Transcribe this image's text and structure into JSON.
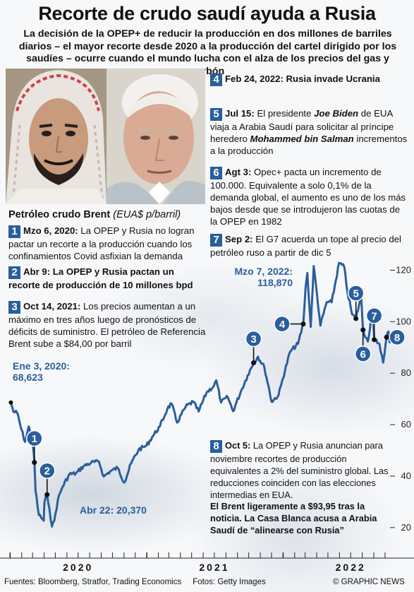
{
  "header": {
    "title": "Recorte de crudo saudí ayuda a Rusia",
    "subtitle": "La decisión de la OPEP+ de reducir la producción en dos millones de barriles diarios – el mayor recorte desde 2020 a la producción del cartel dirigido por los saudíes – ocurre cuando el mundo lucha con el alza de los precios del gas y carbón"
  },
  "photos": {
    "left": "Mohammed bin Salman",
    "right": "Joe Biden"
  },
  "events": [
    {
      "n": "1",
      "date": "Mzo 6, 2020:",
      "text": " La OPEP y Rusia no logran pactar un recorte a la producción cuando los confinamientos Covid asfixian la demanda"
    },
    {
      "n": "2",
      "date": "Abr 9:",
      "text": " La OPEP y Rusia pactan un recorte de producción de 10 millones bpd"
    },
    {
      "n": "3",
      "date": "Oct 14, 2021:",
      "text": " Los precios aumentan a un máximo en tres años luego de pronósticos de déficits de suministro. El petróleo de Referencia Brent sube a $84,00 por barril"
    },
    {
      "n": "4",
      "date": "Feb 24, 2022:",
      "text": " Rusia invade Ucrania"
    },
    {
      "n": "5",
      "date": "Jul 15:",
      "text_a": " El presidente ",
      "name_a": "Joe Biden",
      "text_b": " de EUA viaja a Arabia Saudí para solicitar al príncipe heredero ",
      "name_b": "Mohammed bin Salman",
      "text_c": " incrementos a la producción"
    },
    {
      "n": "6",
      "date": "Agt 3:",
      "text": " Opec+ pacta un incremento de 100.000. Equivalente a solo 0,1% de la demanda global, el aumento es uno de los más bajos desde que se introdujeron las cuotas de la OPEP en 1982"
    },
    {
      "n": "7",
      "date": "Sep 2:",
      "text": " El G7 acuerda un tope al precio del petróleo ruso a partir de dic 5"
    },
    {
      "n": "8",
      "date": "Oct 5:",
      "text": " La OPEP y Rusia anuncian para noviembre recortes de producción equivalentes a 2% del suministro global. Las reducciones coinciden con las elecciones intermedias en EUA."
    }
  ],
  "brent_note": "El Brent ligeramente a $93,95 tras la noticia. La Casa Blanca acusa a Arabia Saudí de “alinearse con Rusia”",
  "chart_data": {
    "type": "line",
    "title": "Petróleo crudo Brent",
    "unit": "(EUA$ p/barril)",
    "series_color": "#2a5e9c",
    "x_tick_labels": [
      "2020",
      "2021",
      "2022"
    ],
    "y_tick_labels": [
      "20",
      "40",
      "60",
      "80",
      "100",
      "120"
    ],
    "ylim": [
      12,
      130
    ],
    "xlim": [
      "2019-12-20",
      "2022-10-20"
    ],
    "series": [
      {
        "values": [
          [
            "2020-01-03",
            68.6
          ],
          [
            "2020-01-10",
            65.0
          ],
          [
            "2020-01-20",
            64.6
          ],
          [
            "2020-01-31",
            58.2
          ],
          [
            "2020-02-10",
            53.3
          ],
          [
            "2020-02-20",
            59.3
          ],
          [
            "2020-03-02",
            51.9
          ],
          [
            "2020-03-06",
            45.3
          ],
          [
            "2020-03-09",
            34.4
          ],
          [
            "2020-03-18",
            24.9
          ],
          [
            "2020-03-31",
            22.7
          ],
          [
            "2020-04-02",
            29.9
          ],
          [
            "2020-04-09",
            32.8
          ],
          [
            "2020-04-15",
            27.7
          ],
          [
            "2020-04-22",
            20.4
          ],
          [
            "2020-04-28",
            22.5
          ],
          [
            "2020-05-08",
            30.9
          ],
          [
            "2020-05-20",
            35.8
          ],
          [
            "2020-06-08",
            40.8
          ],
          [
            "2020-06-25",
            41.0
          ],
          [
            "2020-07-15",
            43.8
          ],
          [
            "2020-08-05",
            45.2
          ],
          [
            "2020-08-26",
            45.6
          ],
          [
            "2020-09-08",
            39.8
          ],
          [
            "2020-09-25",
            41.9
          ],
          [
            "2020-10-15",
            43.2
          ],
          [
            "2020-11-02",
            37.5
          ],
          [
            "2020-11-20",
            44.9
          ],
          [
            "2020-12-10",
            50.3
          ],
          [
            "2020-12-31",
            51.8
          ],
          [
            "2021-01-15",
            55.1
          ],
          [
            "2021-02-05",
            59.3
          ],
          [
            "2021-02-25",
            66.1
          ],
          [
            "2021-03-08",
            68.2
          ],
          [
            "2021-03-23",
            60.8
          ],
          [
            "2021-04-15",
            66.9
          ],
          [
            "2021-05-05",
            68.9
          ],
          [
            "2021-05-20",
            65.1
          ],
          [
            "2021-06-10",
            72.5
          ],
          [
            "2021-06-30",
            75.1
          ],
          [
            "2021-07-06",
            77.2
          ],
          [
            "2021-07-19",
            68.6
          ],
          [
            "2021-08-06",
            70.7
          ],
          [
            "2021-08-20",
            65.2
          ],
          [
            "2021-09-10",
            72.9
          ],
          [
            "2021-09-28",
            79.1
          ],
          [
            "2021-10-14",
            84.0
          ],
          [
            "2021-10-26",
            86.4
          ],
          [
            "2021-11-12",
            82.2
          ],
          [
            "2021-11-26",
            72.7
          ],
          [
            "2021-12-01",
            68.9
          ],
          [
            "2021-12-20",
            71.5
          ],
          [
            "2021-12-31",
            77.8
          ],
          [
            "2022-01-20",
            88.4
          ],
          [
            "2022-02-10",
            91.4
          ],
          [
            "2022-02-24",
            99.1
          ],
          [
            "2022-03-02",
            112.9
          ],
          [
            "2022-03-07",
            118.9
          ],
          [
            "2022-03-16",
            98.0
          ],
          [
            "2022-03-24",
            121.6
          ],
          [
            "2022-04-11",
            98.5
          ],
          [
            "2022-04-28",
            107.6
          ],
          [
            "2022-05-11",
            107.5
          ],
          [
            "2022-05-31",
            122.8
          ],
          [
            "2022-06-14",
            121.2
          ],
          [
            "2022-06-22",
            111.7
          ],
          [
            "2022-07-05",
            102.8
          ],
          [
            "2022-07-15",
            101.2
          ],
          [
            "2022-07-29",
            110.0
          ],
          [
            "2022-08-03",
            96.8
          ],
          [
            "2022-08-16",
            92.3
          ],
          [
            "2022-08-29",
            105.1
          ],
          [
            "2022-09-02",
            93.0
          ],
          [
            "2022-09-16",
            91.4
          ],
          [
            "2022-09-26",
            84.1
          ],
          [
            "2022-09-30",
            87.9
          ],
          [
            "2022-10-05",
            93.95
          ],
          [
            "2022-10-10",
            96.2
          ],
          [
            "2022-10-14",
            91.6
          ]
        ]
      }
    ],
    "annotations": [
      {
        "label": "Ene 3, 2020:",
        "value": "68,623"
      },
      {
        "label": "Abr 22:",
        "value": "20,370"
      },
      {
        "label": "Mzo 7, 2022:",
        "value": "118,870"
      }
    ],
    "markers": [
      {
        "n": "1",
        "date": "2020-03-06"
      },
      {
        "n": "2",
        "date": "2020-04-09"
      },
      {
        "n": "3",
        "date": "2021-10-14"
      },
      {
        "n": "4",
        "date": "2022-02-24"
      },
      {
        "n": "5",
        "date": "2022-07-15"
      },
      {
        "n": "6",
        "date": "2022-08-03"
      },
      {
        "n": "7",
        "date": "2022-09-02"
      },
      {
        "n": "8",
        "date": "2022-10-05"
      }
    ]
  },
  "footer": {
    "sources": "Fuentes: Bloomberg, Stratfor, Trading Economics",
    "photos": "Fotos: Getty Images",
    "credit": "© GRAPHIC NEWS"
  }
}
